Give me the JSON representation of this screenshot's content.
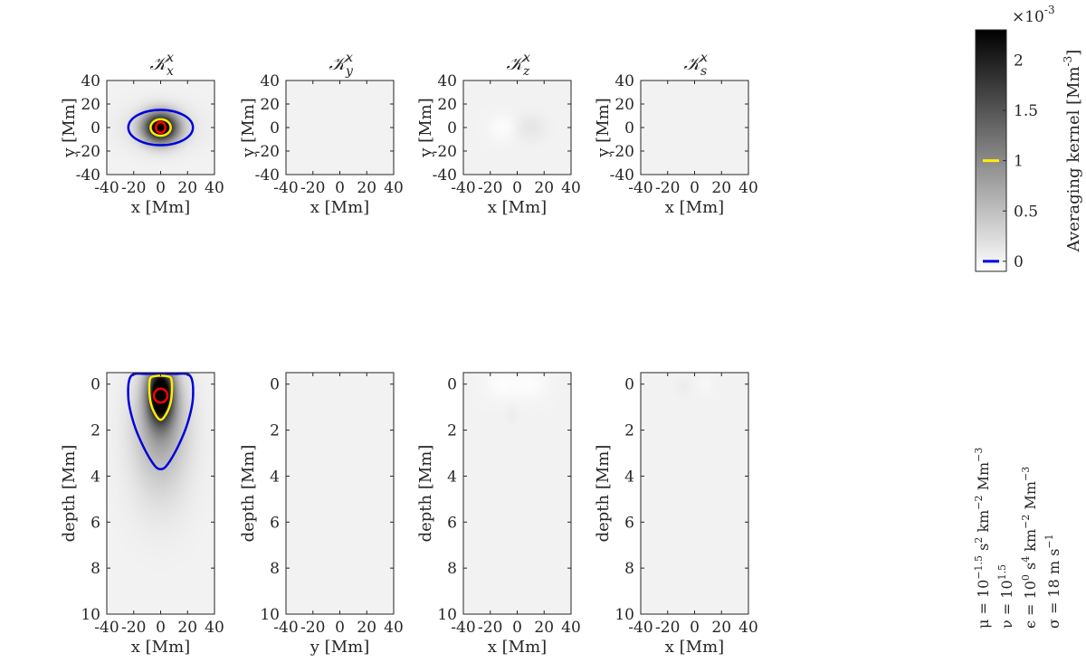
{
  "chart_data": [
    {
      "type": "heatmap",
      "title_main": "𝒦",
      "title_sub": "x",
      "title_sup": "x",
      "xlabel": "x [Mm]",
      "ylabel": "y [Mm]",
      "xlim": [
        -40,
        40
      ],
      "ylim": [
        -40,
        40
      ],
      "xticks": [
        "-40",
        "-20",
        "0",
        "20",
        "40"
      ],
      "yticks": [
        "40",
        "20",
        "0",
        "-20",
        "-40"
      ],
      "blobs": [
        {
          "x": 0,
          "y": 0,
          "sx": 9,
          "sy": 9,
          "amp": 1.0
        },
        {
          "x": 0,
          "y": 0,
          "sx": 20,
          "sy": 13,
          "amp": 0.08
        }
      ],
      "contours": [
        {
          "level": 0.0,
          "color": "#0000dd",
          "shape": "ellipse",
          "cx": 0,
          "cy": 0,
          "rx": 24,
          "ry": 15
        },
        {
          "level": 0.001,
          "color": "#ffee00",
          "shape": "ellipse",
          "cx": 0,
          "cy": 0,
          "rx": 7.5,
          "ry": 7
        },
        {
          "level": 0.002,
          "color": "#ff0000",
          "shape": "ellipse",
          "cx": 0,
          "cy": 0,
          "rx": 3.5,
          "ry": 4.5
        }
      ]
    },
    {
      "type": "heatmap",
      "title_main": "𝒦",
      "title_sub": "y",
      "title_sup": "x",
      "xlabel": "x [Mm]",
      "ylabel": "y [Mm]",
      "xlim": [
        -40,
        40
      ],
      "ylim": [
        -40,
        40
      ],
      "xticks": [
        "-40",
        "-20",
        "0",
        "20",
        "40"
      ],
      "yticks": [
        "40",
        "20",
        "0",
        "-20",
        "-40"
      ],
      "blobs": [],
      "contours": []
    },
    {
      "type": "heatmap",
      "title_main": "𝒦",
      "title_sub": "z",
      "title_sup": "x",
      "xlabel": "x [Mm]",
      "ylabel": "y [Mm]",
      "xlim": [
        -40,
        40
      ],
      "ylim": [
        -40,
        40
      ],
      "xticks": [
        "-40",
        "-20",
        "0",
        "20",
        "40"
      ],
      "yticks": [
        "40",
        "20",
        "0",
        "-20",
        "-40"
      ],
      "blobs": [
        {
          "x": -10,
          "y": 0,
          "sx": 8,
          "sy": 8,
          "amp": -0.04
        },
        {
          "x": 9,
          "y": 0,
          "sx": 8,
          "sy": 8,
          "amp": 0.05
        }
      ],
      "contours": []
    },
    {
      "type": "heatmap",
      "title_main": "𝒦",
      "title_sub": "s",
      "title_sup": "x",
      "xlabel": "x [Mm]",
      "ylabel": "y [Mm]",
      "xlim": [
        -40,
        40
      ],
      "ylim": [
        -40,
        40
      ],
      "xticks": [
        "-40",
        "-20",
        "0",
        "20",
        "40"
      ],
      "yticks": [
        "40",
        "20",
        "0",
        "-20",
        "-40"
      ],
      "blobs": [],
      "contours": []
    },
    {
      "type": "heatmap",
      "xlabel": "x [Mm]",
      "ylabel": "depth [Mm]",
      "xlim": [
        -40,
        40
      ],
      "ylim": [
        -0.5,
        10
      ],
      "xticks": [
        "-40",
        "-20",
        "0",
        "20",
        "40"
      ],
      "yticks": [
        "0",
        "2",
        "4",
        "6",
        "8",
        "10"
      ],
      "blobs": [
        {
          "x": 0,
          "y": 0.4,
          "sx": 7,
          "sy": 0.9,
          "amp": 1.0
        },
        {
          "x": 0,
          "y": 1.8,
          "sx": 14,
          "sy": 1.6,
          "amp": 0.3
        },
        {
          "x": 0,
          "y": 4.5,
          "sx": 16,
          "sy": 1.5,
          "amp": 0.05
        }
      ],
      "contours": [
        {
          "level": 0.0,
          "color": "#0000dd",
          "shape": "path",
          "points": [
            [
              -22,
              -0.35
            ],
            [
              -24,
              0.6
            ],
            [
              -20,
              1.7
            ],
            [
              -13,
              2.7
            ],
            [
              -5,
              3.5
            ],
            [
              0,
              3.7
            ],
            [
              5,
              3.5
            ],
            [
              13,
              2.7
            ],
            [
              20,
              1.7
            ],
            [
              24,
              0.6
            ],
            [
              22,
              -0.35
            ],
            [
              10,
              -0.45
            ],
            [
              -10,
              -0.45
            ]
          ]
        },
        {
          "level": 0.001,
          "color": "#ffee00",
          "shape": "path",
          "points": [
            [
              -8,
              -0.2
            ],
            [
              -8,
              0.6
            ],
            [
              -5,
              1.2
            ],
            [
              0,
              1.55
            ],
            [
              5,
              1.2
            ],
            [
              8,
              0.6
            ],
            [
              8,
              -0.2
            ],
            [
              4,
              -0.35
            ],
            [
              -4,
              -0.35
            ]
          ]
        },
        {
          "level": 0.002,
          "color": "#ff0000",
          "shape": "ellipse",
          "cx": 0,
          "cy": 0.5,
          "rx": 5,
          "ry": 0.3
        }
      ]
    },
    {
      "type": "heatmap",
      "xlabel": "y [Mm]",
      "ylabel": "depth [Mm]",
      "xlim": [
        -40,
        40
      ],
      "ylim": [
        -0.5,
        10
      ],
      "xticks": [
        "-40",
        "-20",
        "0",
        "20",
        "40"
      ],
      "yticks": [
        "0",
        "2",
        "4",
        "6",
        "8",
        "10"
      ],
      "blobs": [],
      "contours": []
    },
    {
      "type": "heatmap",
      "xlabel": "x [Mm]",
      "ylabel": "depth [Mm]",
      "xlim": [
        -40,
        40
      ],
      "ylim": [
        -0.5,
        10
      ],
      "xticks": [
        "-40",
        "-20",
        "0",
        "20",
        "40"
      ],
      "yticks": [
        "0",
        "2",
        "4",
        "6",
        "8",
        "10"
      ],
      "blobs": [
        {
          "x": -12,
          "y": 0.0,
          "sx": 9,
          "sy": 0.5,
          "amp": -0.04
        },
        {
          "x": 10,
          "y": 0.0,
          "sx": 9,
          "sy": 0.5,
          "amp": -0.04
        },
        {
          "x": -4,
          "y": 1.3,
          "sx": 3,
          "sy": 0.3,
          "amp": 0.02
        }
      ],
      "contours": []
    },
    {
      "type": "heatmap",
      "xlabel": "x [Mm]",
      "ylabel": "depth [Mm]",
      "xlim": [
        -40,
        40
      ],
      "ylim": [
        -0.5,
        10
      ],
      "xticks": [
        "-40",
        "-20",
        "0",
        "20",
        "40"
      ],
      "yticks": [
        "0",
        "2",
        "4",
        "6",
        "8",
        "10"
      ],
      "blobs": [
        {
          "x": -8,
          "y": 0.1,
          "sx": 4,
          "sy": 0.3,
          "amp": 0.02
        },
        {
          "x": 8,
          "y": 0.0,
          "sx": 4,
          "sy": 0.3,
          "amp": -0.02
        }
      ],
      "contours": []
    }
  ],
  "colorbar": {
    "label": "Averaging kernel [Mm",
    "label_sup": "-3",
    "label_end": "]",
    "multiplier": "×10",
    "multiplier_sup": "-3",
    "range": [
      -0.1,
      2.3
    ],
    "ticks": [
      "2",
      "1.5",
      "1",
      "0.5",
      "0"
    ],
    "tick_values": [
      2,
      1.5,
      1,
      0.5,
      0
    ],
    "colormap": "gray, white to black",
    "marker_yellow_value": 1.0,
    "marker_blue_value": 0.0,
    "marker_yellow_color": "#ffee00",
    "marker_blue_color": "#0000dd"
  },
  "parameters": [
    {
      "lhs": "μ = 10",
      "sup": "−1.5",
      "rest": " s",
      "rest_sup": "2",
      "tail": " km",
      "tail_sup": "−2",
      "end": " Mm",
      "end_sup": "−3"
    },
    {
      "lhs": "ν = 10",
      "sup": "1.5",
      "rest": "",
      "rest_sup": "",
      "tail": "",
      "tail_sup": "",
      "end": "",
      "end_sup": ""
    },
    {
      "lhs": "ϵ = 10",
      "sup": "0",
      "rest": " s",
      "rest_sup": "4",
      "tail": " km",
      "tail_sup": "−2",
      "end": " Mm",
      "end_sup": "−3"
    },
    {
      "lhs": "σ = 18 m s",
      "sup": "−1",
      "rest": "",
      "rest_sup": "",
      "tail": "",
      "tail_sup": "",
      "end": "",
      "end_sup": ""
    }
  ]
}
